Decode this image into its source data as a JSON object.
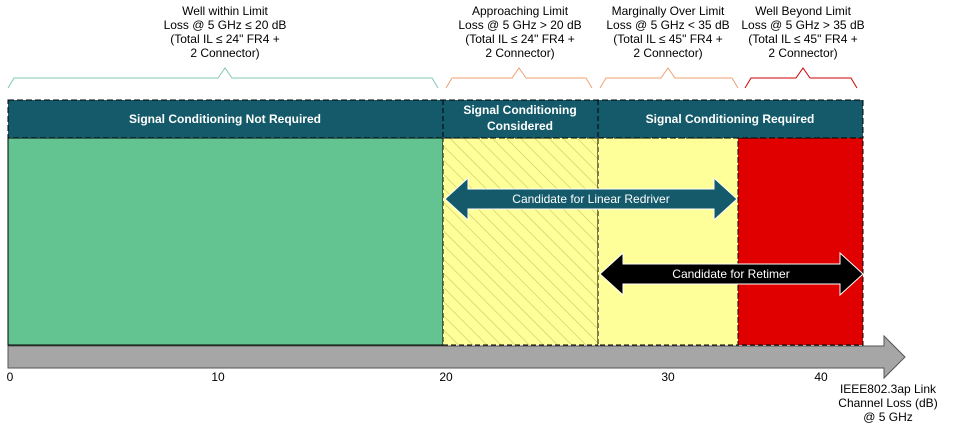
{
  "zones": [
    {
      "title": [
        "Well within Limit",
        "Loss @ 5 GHz ≤ 20 dB",
        "(Total IL ≤ 24\" FR4 +",
        "2 Connector)"
      ]
    },
    {
      "title": [
        "Approaching Limit",
        "Loss @ 5 GHz > 20 dB",
        "(Total IL ≤ 24\" FR4 +",
        "2 Connector)"
      ]
    },
    {
      "title": [
        "Marginally Over Limit",
        "Loss @ 5 GHz < 35 dB",
        "(Total IL ≤ 45\" FR4 +",
        "2 Connector)"
      ]
    },
    {
      "title": [
        "Well Beyond Limit",
        "Loss @ 5 GHz > 35 dB",
        "(Total IL ≤ 45\" FR4 +",
        "2 Connector)"
      ]
    }
  ],
  "header": [
    "Signal Conditioning Not Required",
    [
      "Signal Conditioning",
      "Considered"
    ],
    "Signal Conditioning Required"
  ],
  "arrows": [
    "Candidate for Linear Redriver",
    "Candidate for Retimer"
  ],
  "axis": {
    "ticks": [
      "0",
      "10",
      "20",
      "30",
      "40"
    ],
    "title": [
      "IEEE802.3ap Link",
      "Channel Loss (dB)",
      "@ 5 GHz"
    ]
  }
}
